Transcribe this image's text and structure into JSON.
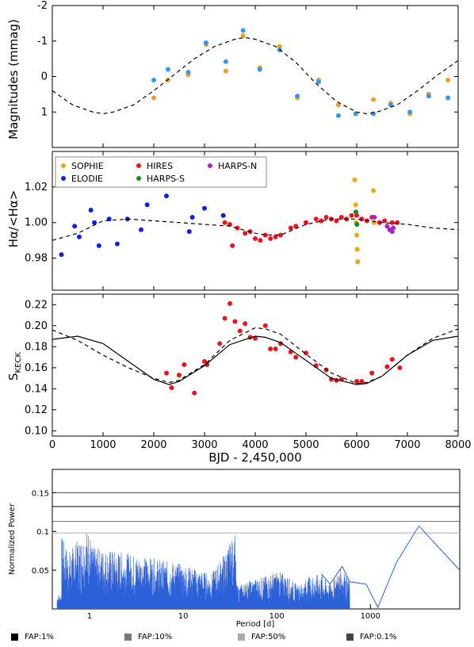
{
  "chart_data": [
    {
      "type": "scatter",
      "panel": "photometry",
      "ylabel": "Magnitudes (mmag)",
      "xlim": [
        0,
        8000
      ],
      "ylim": [
        -2,
        2
      ],
      "y_inverted": true,
      "yticks": [
        "-2",
        "-1",
        "0",
        "1"
      ],
      "series": [
        {
          "color": "#f0a020",
          "x": [
            2000,
            2280,
            2680,
            3030,
            3420,
            3760,
            4090,
            4480,
            4830,
            5250,
            5640,
            5980,
            6330,
            6670,
            7050,
            7420,
            7800
          ],
          "y": [
            0.6,
            0.1,
            -0.05,
            -0.9,
            -0.15,
            -1.15,
            -0.25,
            -0.85,
            0.6,
            0.1,
            0.8,
            1.05,
            0.65,
            0.75,
            1.05,
            0.5,
            0.1
          ]
        },
        {
          "color": "#3399ee",
          "x": [
            2000,
            2280,
            2680,
            3030,
            3420,
            3760,
            4090,
            4480,
            4830,
            5250,
            5640,
            5980,
            6330,
            6670,
            7050,
            7420,
            7800
          ],
          "y": [
            0.1,
            -0.2,
            -0.12,
            -0.95,
            -0.42,
            -1.3,
            -0.2,
            -0.75,
            0.55,
            0.15,
            1.1,
            1.05,
            1.05,
            0.8,
            1.0,
            0.55,
            0.6
          ]
        },
        {
          "style": "dashed",
          "x": [
            0,
            400,
            800,
            1000,
            1200,
            1600,
            2000,
            2400,
            2800,
            3200,
            3600,
            3800,
            4000,
            4400,
            4800,
            5200,
            5600,
            6000,
            6200,
            6400,
            6800,
            7200,
            7600,
            8000
          ],
          "y": [
            0.4,
            0.8,
            1.0,
            1.05,
            1.0,
            0.8,
            0.4,
            -0.05,
            -0.5,
            -0.85,
            -1.05,
            -1.1,
            -1.05,
            -0.85,
            -0.4,
            0.2,
            0.7,
            1.0,
            1.05,
            1.0,
            0.8,
            0.4,
            -0.05,
            -0.45
          ]
        }
      ]
    },
    {
      "type": "scatter",
      "panel": "halpha",
      "ylabel": "Hα/<Hα>",
      "xlim": [
        0,
        8000
      ],
      "ylim": [
        0.962,
        1.04
      ],
      "yticks": [
        "0.98",
        "1.00",
        "1.02"
      ],
      "legend_placement": "top-left",
      "series": [
        {
          "name": "SOPHIE",
          "color": "#e6a817",
          "x": [
            5960,
            5980,
            5990,
            6000,
            6010,
            6020,
            6330,
            6340
          ],
          "y": [
            1.024,
            1.01,
            1.0,
            0.993,
            0.985,
            0.978,
            1.018,
            1.0
          ]
        },
        {
          "name": "ELODIE",
          "color": "#1020dd",
          "x": [
            180,
            440,
            530,
            760,
            830,
            920,
            1120,
            1280,
            1480,
            1750,
            1870,
            2250,
            2700,
            2760,
            3000,
            3370
          ],
          "y": [
            0.982,
            0.998,
            0.992,
            1.007,
            1.0,
            0.987,
            1.002,
            0.988,
            1.002,
            0.996,
            1.01,
            1.015,
            0.995,
            1.003,
            1.008,
            1.004
          ]
        },
        {
          "name": "HIRES",
          "color": "#e8141e",
          "x": [
            3400,
            3500,
            3550,
            3650,
            3800,
            3900,
            4000,
            4100,
            4200,
            4300,
            4400,
            4500,
            4700,
            4800,
            5000,
            5200,
            5300,
            5400,
            5500,
            5600,
            5700,
            5800,
            5900,
            6000,
            6100,
            6200,
            6300,
            6450,
            6550,
            6700,
            6800
          ],
          "y": [
            1.0,
            0.999,
            0.987,
            0.997,
            0.994,
            0.995,
            0.991,
            0.99,
            0.993,
            0.991,
            0.992,
            0.993,
            0.997,
            0.998,
            1.0,
            1.002,
            1.001,
            1.003,
            1.002,
            1.001,
            1.003,
            1.002,
            1.004,
            1.004,
            1.002,
            1.001,
            1.003,
            1.0,
            1.001,
            1.0,
            1.0
          ]
        },
        {
          "name": "HARPS-S",
          "color": "#1a8a1a",
          "x": [
            5985,
            6005
          ],
          "y": [
            1.006,
            0.999
          ]
        },
        {
          "name": "HARPS-N",
          "color": "#aa22cc",
          "x": [
            6350,
            6600,
            6650,
            6700,
            6720
          ],
          "y": [
            1.003,
            0.998,
            0.996,
            0.995,
            0.997
          ]
        },
        {
          "style": "dashed",
          "x": [
            0,
            500,
            1000,
            1500,
            2000,
            2500,
            3000,
            3500,
            4000,
            4200,
            4500,
            5000,
            5500,
            6000,
            6500,
            7000,
            7500,
            8000
          ],
          "y": [
            0.99,
            0.994,
            1.001,
            1.002,
            1.001,
            1.0,
            0.999,
            0.998,
            0.994,
            0.993,
            0.993,
            0.999,
            1.002,
            1.002,
            1.0,
            0.999,
            0.997,
            0.996
          ]
        }
      ]
    },
    {
      "type": "scatter",
      "panel": "skeck",
      "ylabel": "S",
      "ylabel_subscript": "KECK",
      "xlabel": "BJD - 2,450,000",
      "xlim": [
        0,
        8000
      ],
      "ylim": [
        0.095,
        0.23
      ],
      "xticks": [
        "0",
        "1000",
        "2000",
        "3000",
        "4000",
        "5000",
        "6000",
        "7000",
        "8000"
      ],
      "yticks": [
        "0.10",
        "0.12",
        "0.14",
        "0.16",
        "0.18",
        "0.20",
        "0.22"
      ],
      "series": [
        {
          "color": "#e8141e",
          "x": [
            2250,
            2350,
            2500,
            2600,
            2800,
            3000,
            3050,
            3300,
            3400,
            3500,
            3600,
            3700,
            3800,
            3900,
            4000,
            4200,
            4300,
            4400,
            4500,
            4700,
            4800,
            5000,
            5200,
            5400,
            5500,
            5600,
            5700,
            6000,
            6100,
            6300,
            6600,
            6700,
            6850
          ],
          "y": [
            0.155,
            0.141,
            0.153,
            0.163,
            0.136,
            0.166,
            0.163,
            0.183,
            0.207,
            0.221,
            0.204,
            0.195,
            0.202,
            0.189,
            0.188,
            0.2,
            0.178,
            0.178,
            0.183,
            0.175,
            0.17,
            0.174,
            0.162,
            0.158,
            0.149,
            0.148,
            0.149,
            0.147,
            0.147,
            0.155,
            0.161,
            0.168,
            0.16
          ]
        },
        {
          "style": "solid",
          "x": [
            0,
            500,
            1000,
            1500,
            2000,
            2300,
            2500,
            3000,
            3500,
            4000,
            4200,
            4500,
            5000,
            5500,
            6000,
            6200,
            6500,
            7000,
            7500,
            8000
          ],
          "y": [
            0.187,
            0.19,
            0.183,
            0.166,
            0.149,
            0.144,
            0.147,
            0.162,
            0.182,
            0.19,
            0.189,
            0.184,
            0.167,
            0.15,
            0.144,
            0.145,
            0.152,
            0.172,
            0.186,
            0.19
          ]
        },
        {
          "style": "dashed",
          "x": [
            0,
            500,
            1000,
            1500,
            2000,
            2300,
            2500,
            3000,
            3500,
            4000,
            4200,
            4500,
            5000,
            5500,
            6000,
            6200,
            6500,
            7000,
            7500,
            8000
          ],
          "y": [
            0.196,
            0.186,
            0.172,
            0.16,
            0.15,
            0.146,
            0.148,
            0.163,
            0.186,
            0.198,
            0.197,
            0.192,
            0.173,
            0.155,
            0.145,
            0.146,
            0.152,
            0.172,
            0.188,
            0.197
          ]
        }
      ]
    },
    {
      "type": "line",
      "panel": "periodogram",
      "xlabel": "Period [d]",
      "ylabel": "Normalized Power",
      "x_scale": "log",
      "xlim": [
        0.4,
        9000
      ],
      "ylim": [
        0,
        0.18
      ],
      "xticks": [
        "1",
        "10",
        "100",
        "1000"
      ],
      "yticks": [
        "0.05",
        "0.1",
        "0.15"
      ],
      "fap_levels": [
        {
          "label": "FAP:1%",
          "value": 0.132,
          "color": "#000000"
        },
        {
          "label": "FAP:10%",
          "value": 0.113,
          "color": "#777777"
        },
        {
          "label": "FAP:50%",
          "value": 0.098,
          "color": "#aaaaaa"
        },
        {
          "label": "FAP:0.1%",
          "value": 0.15,
          "color": "#444444"
        }
      ],
      "series": [
        {
          "color": "#2b60d8",
          "x": [
            0.5,
            0.6,
            1.0,
            1.05,
            2,
            5,
            10,
            20,
            36,
            37,
            60,
            80,
            100,
            130,
            170,
            220,
            300,
            370,
            500,
            600,
            900,
            1200,
            1900,
            3300,
            9000
          ],
          "y": [
            0.095,
            0.075,
            0.107,
            0.08,
            0.075,
            0.065,
            0.058,
            0.045,
            0.097,
            0.03,
            0.04,
            0.043,
            0.05,
            0.043,
            0.03,
            0.042,
            0.045,
            0.032,
            0.055,
            0.035,
            0.032,
            0.002,
            0.06,
            0.107,
            0.05
          ]
        }
      ]
    }
  ]
}
